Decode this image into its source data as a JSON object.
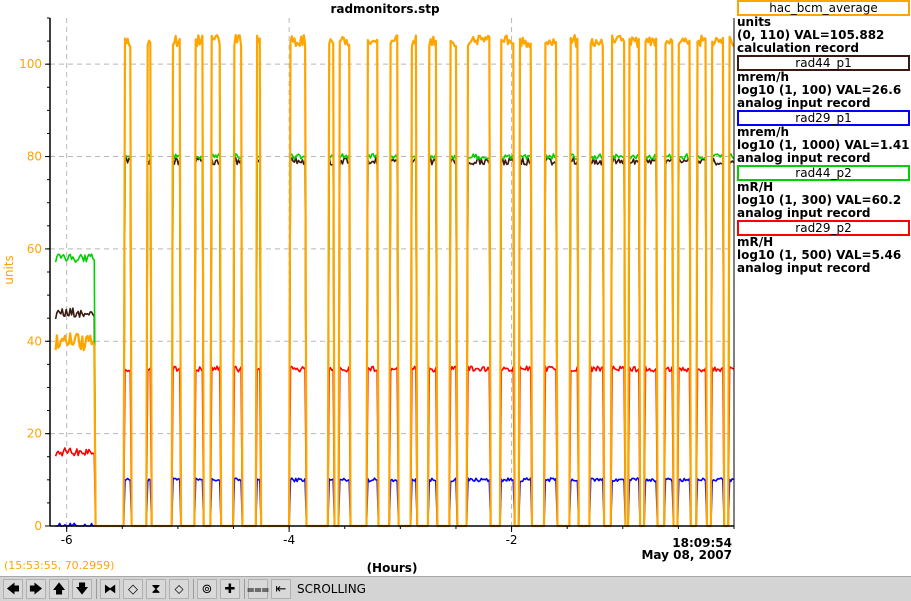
{
  "chart_data": {
    "type": "line",
    "title": "radmonitors.stp",
    "xlabel": "(Hours)",
    "ylabel": "units",
    "xlim": [
      -6.15,
      0
    ],
    "ylim": [
      0,
      110
    ],
    "x_ticks": [
      -6,
      -4,
      -2
    ],
    "y_ticks": [
      0,
      20,
      40,
      60,
      80,
      100
    ],
    "grid": true,
    "timestamp_time": "18:09:54",
    "timestamp_date": "May 08, 2007",
    "cursor_readout": "(15:53:55, 70.2959)",
    "transitions": [
      -5.75,
      -5.48,
      -5.42,
      -5.28,
      -5.24,
      -5.05,
      -4.98,
      -4.85,
      -4.78,
      -4.7,
      -4.62,
      -4.5,
      -4.43,
      -4.3,
      -4.26,
      -4.0,
      -3.85,
      -3.65,
      -3.6,
      -3.55,
      -3.45,
      -3.3,
      -3.2,
      -3.1,
      -3.02,
      -2.9,
      -2.85,
      -2.75,
      -2.68,
      -2.55,
      -2.5,
      -2.4,
      -2.2,
      -2.1,
      -1.98,
      -1.93,
      -1.82,
      -1.7,
      -1.6,
      -1.48,
      -1.4,
      -1.3,
      -1.18,
      -1.1,
      -0.98,
      -0.95,
      -0.85,
      -0.8,
      -0.7,
      -0.62,
      -0.55,
      -0.5,
      -0.4,
      -0.33,
      -0.25,
      -0.2,
      -0.1,
      -0.05
    ],
    "series": [
      {
        "name": "hac_bcm_average",
        "color": "#ffa500",
        "width": 2.2,
        "pre": 40,
        "high": 105,
        "low": 0,
        "noise": 1.3
      },
      {
        "name": "rad44_p2",
        "color": "#00d000",
        "width": 1.6,
        "pre": 58,
        "high": 80,
        "low": 0,
        "noise": 0.6
      },
      {
        "name": "rad44_p1",
        "color": "#3a1a10",
        "width": 1.6,
        "pre": 46,
        "high": 79,
        "low": 0,
        "noise": 0.8
      },
      {
        "name": "rad29_p2",
        "color": "#ff0000",
        "width": 1.6,
        "pre": 16,
        "high": 34,
        "low": 0,
        "noise": 0.6
      },
      {
        "name": "rad29_p1",
        "color": "#0000ff",
        "width": 1.6,
        "pre": 0,
        "high": 10,
        "low": 0,
        "noise": 0.4
      }
    ]
  },
  "legend": [
    {
      "name": "hac_bcm_average",
      "color": "#ffa500",
      "units": "units",
      "range": "(0, 110) VAL=105.882",
      "record": "calculation record"
    },
    {
      "name": "rad44_p1",
      "color": "#3a1a10",
      "units": "mrem/h",
      "range": "log10 (1, 100) VAL=26.6",
      "record": "analog input record"
    },
    {
      "name": "rad29_p1",
      "color": "#0000ff",
      "units": "mrem/h",
      "range": "log10 (1, 1000) VAL=1.41",
      "record": "analog input record"
    },
    {
      "name": "rad44_p2",
      "color": "#00d000",
      "units": "mR/H",
      "range": "log10 (1, 300) VAL=60.2",
      "record": "analog input record"
    },
    {
      "name": "rad29_p2",
      "color": "#ff0000",
      "units": "mR/H",
      "range": "log10 (1, 500) VAL=5.46",
      "record": "analog input record"
    }
  ],
  "toolbar": {
    "buttons": [
      {
        "name": "pan-left-button",
        "glyph": "🡄"
      },
      {
        "name": "pan-right-button",
        "glyph": "🡆"
      },
      {
        "name": "pan-up-button",
        "glyph": "🡅"
      },
      {
        "name": "pan-down-button",
        "glyph": "🡇"
      },
      {
        "name": "zoom-in-x-button",
        "glyph": "⧓"
      },
      {
        "name": "zoom-out-x-button",
        "glyph": "◇"
      },
      {
        "name": "zoom-in-y-button",
        "glyph": "⧗"
      },
      {
        "name": "zoom-out-y-button",
        "glyph": "⬦"
      },
      {
        "name": "auto-scale-button",
        "glyph": "⊚"
      },
      {
        "name": "add-cursor-button",
        "glyph": "✚"
      },
      {
        "name": "stagger-button",
        "glyph": "⩶"
      },
      {
        "name": "scroll-mode-button",
        "glyph": "⇤"
      }
    ],
    "status": "SCROLLING"
  }
}
